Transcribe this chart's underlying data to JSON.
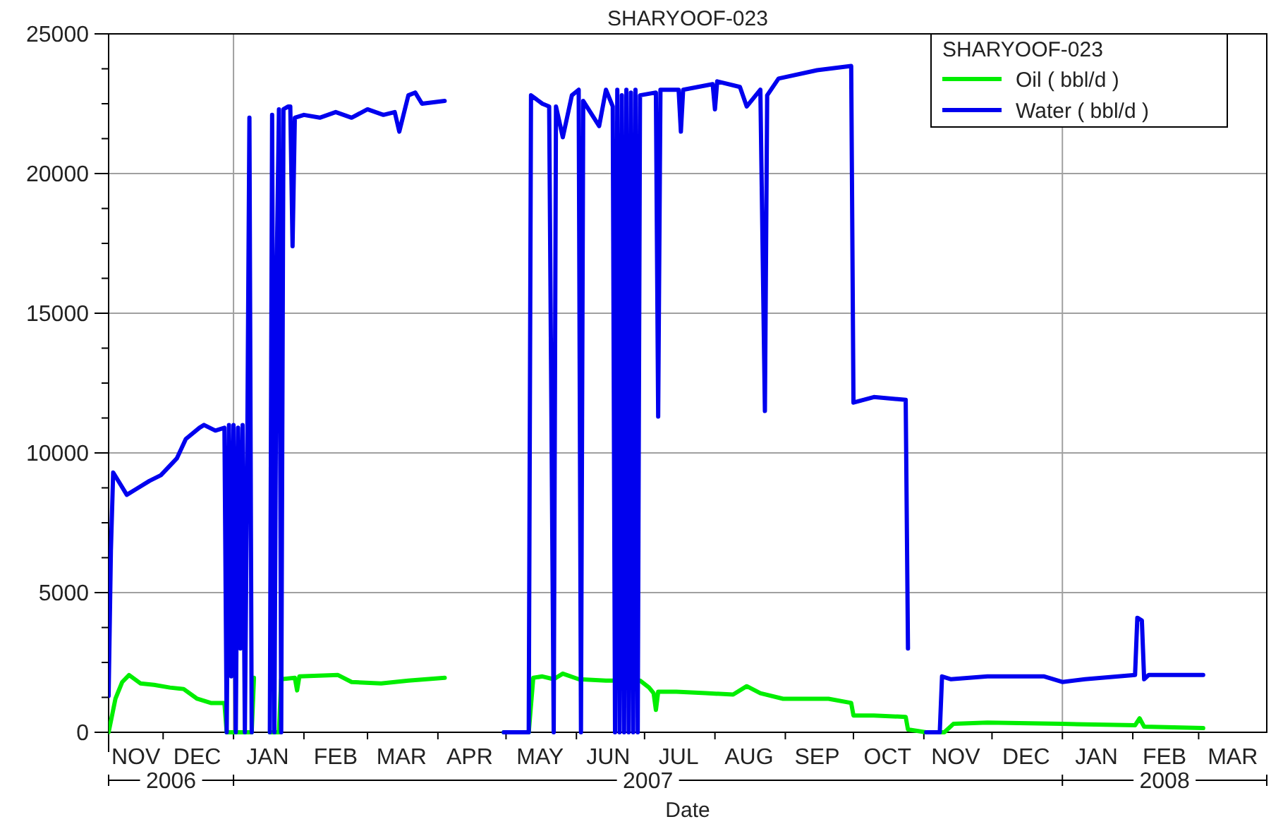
{
  "chart_data": {
    "type": "line",
    "title": "SHARYOOF-023",
    "xlabel": "Date",
    "legend_title": "SHARYOOF-023",
    "legend": "top right",
    "grid": true,
    "line_style": "solid",
    "xlim": [
      "2006-11-07",
      "2008-03-31"
    ],
    "ylim": [
      0,
      25000
    ],
    "yticks": [
      0,
      {
        "value": 1250,
        "label": null
      },
      {
        "value": 2500,
        "label": null
      },
      {
        "value": 3750,
        "label": null
      },
      5000,
      {
        "value": 6250,
        "label": null
      },
      {
        "value": 7500,
        "label": null
      },
      {
        "value": 8750,
        "label": null
      },
      10000,
      {
        "value": 11250,
        "label": null
      },
      {
        "value": 12500,
        "label": null
      },
      {
        "value": 13750,
        "label": null
      },
      15000,
      {
        "value": 16250,
        "label": null
      },
      {
        "value": 17500,
        "label": null
      },
      {
        "value": 18750,
        "label": null
      },
      20000,
      {
        "value": 21250,
        "label": null
      },
      {
        "value": 22500,
        "label": null
      },
      {
        "value": 23750,
        "label": null
      },
      25000
    ],
    "xticks": [
      {
        "value": "2006-11-19",
        "label": "NOV"
      },
      {
        "value": "2006-12-01",
        "label": null
      },
      {
        "value": "2006-12-16",
        "label": "DEC"
      },
      {
        "value": "2007-01-01",
        "label": null
      },
      {
        "value": "2007-01-16",
        "label": "JAN"
      },
      {
        "value": "2007-02-01",
        "label": null
      },
      {
        "value": "2007-02-15",
        "label": "FEB"
      },
      {
        "value": "2007-03-01",
        "label": null
      },
      {
        "value": "2007-03-16",
        "label": "MAR"
      },
      {
        "value": "2007-04-01",
        "label": null
      },
      {
        "value": "2007-04-15",
        "label": "APR"
      },
      {
        "value": "2007-05-01",
        "label": null
      },
      {
        "value": "2007-05-16",
        "label": "MAY"
      },
      {
        "value": "2007-06-01",
        "label": null
      },
      {
        "value": "2007-06-15",
        "label": "JUN"
      },
      {
        "value": "2007-07-01",
        "label": null
      },
      {
        "value": "2007-07-16",
        "label": "JUL"
      },
      {
        "value": "2007-08-01",
        "label": null
      },
      {
        "value": "2007-08-16",
        "label": "AUG"
      },
      {
        "value": "2007-09-01",
        "label": null
      },
      {
        "value": "2007-09-15",
        "label": "SEP"
      },
      {
        "value": "2007-10-01",
        "label": null
      },
      {
        "value": "2007-10-16",
        "label": "OCT"
      },
      {
        "value": "2007-11-01",
        "label": null
      },
      {
        "value": "2007-11-15",
        "label": "NOV"
      },
      {
        "value": "2007-12-01",
        "label": null
      },
      {
        "value": "2007-12-16",
        "label": "DEC"
      },
      {
        "value": "2008-01-01",
        "label": null
      },
      {
        "value": "2008-01-16",
        "label": "JAN"
      },
      {
        "value": "2008-02-01",
        "label": null
      },
      {
        "value": "2008-02-15",
        "label": "FEB"
      },
      {
        "value": "2008-03-01",
        "label": null
      },
      {
        "value": "2008-03-16",
        "label": "MAR"
      }
    ],
    "annotations": [
      "2006",
      "2007",
      "2008"
    ],
    "series": [
      {
        "name": "Oil ( bbl/d )",
        "color": "#00ee00",
        "x": [
          "2006-11-07",
          "2006-11-10",
          "2006-11-13",
          "2006-11-16",
          "2006-11-21",
          "2006-11-27",
          "2006-12-04",
          "2006-12-10",
          "2006-12-16",
          "2006-12-22",
          "2006-12-28",
          "2006-12-29",
          "2007-01-09",
          "2007-01-10",
          "2007-01-11",
          "2007-01-17",
          "2007-01-21",
          "2007-01-22",
          "2007-01-28",
          "2007-01-29",
          "2007-01-30",
          "2007-02-16",
          "2007-02-22",
          "2007-03-07",
          "2007-03-19",
          "2007-04-04",
          "2007-04-15",
          "2007-04-30",
          "2007-05-11",
          "2007-05-13",
          "2007-05-17",
          "2007-05-22",
          "2007-05-26",
          "2007-06-02",
          "2007-06-14",
          "2007-06-29",
          "2007-07-03",
          "2007-07-05",
          "2007-07-06",
          "2007-07-07",
          "2007-07-15",
          "2007-07-28",
          "2007-08-09",
          "2007-08-15",
          "2007-08-21",
          "2007-08-31",
          "2007-09-20",
          "2007-09-30",
          "2007-10-01",
          "2007-10-10",
          "2007-10-24",
          "2007-10-25",
          "2007-11-02",
          "2007-11-10",
          "2007-11-14",
          "2007-11-29",
          "2008-01-01",
          "2008-02-02",
          "2008-02-04",
          "2008-02-06",
          "2008-03-03"
        ],
        "values": [
          0,
          1200,
          1800,
          2050,
          1750,
          1700,
          1600,
          1550,
          1200,
          1050,
          1050,
          0,
          0,
          1950,
          null,
          0,
          0,
          1900,
          1950,
          1500,
          2000,
          2050,
          1800,
          1750,
          1850,
          1950,
          null,
          0,
          0,
          1950,
          2000,
          1900,
          2100,
          1900,
          1850,
          1850,
          1600,
          1400,
          800,
          1450,
          1450,
          1400,
          1350,
          1650,
          1400,
          1200,
          1200,
          1050,
          600,
          600,
          550,
          100,
          0,
          0,
          300,
          350,
          300,
          250,
          500,
          200,
          150
        ]
      },
      {
        "name": "Water ( bbl/d )",
        "color": "#0000ee",
        "x": [
          "2006-11-07",
          "2006-11-08",
          "2006-11-09",
          "2006-11-12",
          "2006-11-15",
          "2006-11-19",
          "2006-11-25",
          "2006-11-30",
          "2006-12-07",
          "2006-12-11",
          "2006-12-17",
          "2006-12-19",
          "2006-12-24",
          "2006-12-28",
          "2006-12-29",
          "2006-12-30",
          "2006-12-31",
          "2007-01-01",
          "2007-01-02",
          "2007-01-03",
          "2007-01-04",
          "2007-01-05",
          "2007-01-06",
          "2007-01-07",
          "2007-01-08",
          "2007-01-09",
          "2007-01-12",
          "2007-01-17",
          "2007-01-18",
          "2007-01-19",
          "2007-01-20",
          "2007-01-21",
          "2007-01-22",
          "2007-01-23",
          "2007-01-25",
          "2007-01-26",
          "2007-01-27",
          "2007-01-28",
          "2007-02-01",
          "2007-02-08",
          "2007-02-15",
          "2007-02-22",
          "2007-03-01",
          "2007-03-08",
          "2007-03-13",
          "2007-03-15",
          "2007-03-19",
          "2007-03-22",
          "2007-03-25",
          "2007-04-04",
          "2007-04-15",
          "2007-04-30",
          "2007-05-11",
          "2007-05-12",
          "2007-05-17",
          "2007-05-20",
          "2007-05-22",
          "2007-05-23",
          "2007-05-26",
          "2007-05-30",
          "2007-06-02",
          "2007-06-03",
          "2007-06-04",
          "2007-06-11",
          "2007-06-14",
          "2007-06-17",
          "2007-06-18",
          "2007-06-19",
          "2007-06-20",
          "2007-06-21",
          "2007-06-22",
          "2007-06-23",
          "2007-06-24",
          "2007-06-25",
          "2007-06-26",
          "2007-06-27",
          "2007-06-28",
          "2007-06-29",
          "2007-07-06",
          "2007-07-07",
          "2007-07-08",
          "2007-07-16",
          "2007-07-17",
          "2007-07-18",
          "2007-07-31",
          "2007-08-01",
          "2007-08-02",
          "2007-08-12",
          "2007-08-15",
          "2007-08-21",
          "2007-08-23",
          "2007-08-24",
          "2007-08-29",
          "2007-09-15",
          "2007-09-30",
          "2007-10-01",
          "2007-10-10",
          "2007-10-24",
          "2007-10-25",
          "2007-10-26",
          "2007-11-02",
          "2007-11-08",
          "2007-11-09",
          "2007-11-13",
          "2007-11-29",
          "2007-12-24",
          "2008-01-01",
          "2008-01-11",
          "2008-02-02",
          "2008-02-03",
          "2008-02-05",
          "2008-02-06",
          "2008-02-08",
          "2008-03-03"
        ],
        "values": [
          1300,
          6500,
          9300,
          8900,
          8500,
          8700,
          9000,
          9200,
          9800,
          10500,
          10900,
          11000,
          10800,
          10900,
          0,
          11000,
          2000,
          11000,
          0,
          10900,
          3000,
          11000,
          0,
          9500,
          22000,
          0,
          null,
          0,
          22100,
          0,
          16500,
          22300,
          0,
          22300,
          22400,
          22400,
          17400,
          22000,
          22100,
          22000,
          22200,
          22000,
          22300,
          22100,
          22200,
          21500,
          22800,
          22900,
          22500,
          22600,
          null,
          0,
          0,
          22800,
          22500,
          22400,
          0,
          22400,
          21300,
          22800,
          23000,
          0,
          22600,
          21700,
          23000,
          22400,
          0,
          23000,
          0,
          22800,
          0,
          23000,
          0,
          22900,
          0,
          23000,
          0,
          22800,
          22900,
          11300,
          23000,
          23000,
          21500,
          23000,
          23200,
          22300,
          23300,
          23100,
          22400,
          23000,
          11500,
          22800,
          23400,
          23700,
          23850,
          11800,
          12000,
          11900,
          3000,
          null,
          0,
          0,
          2000,
          1900,
          2000,
          2000,
          1800,
          1900,
          2050,
          4100,
          4000,
          1900,
          2050,
          2050
        ]
      }
    ]
  }
}
